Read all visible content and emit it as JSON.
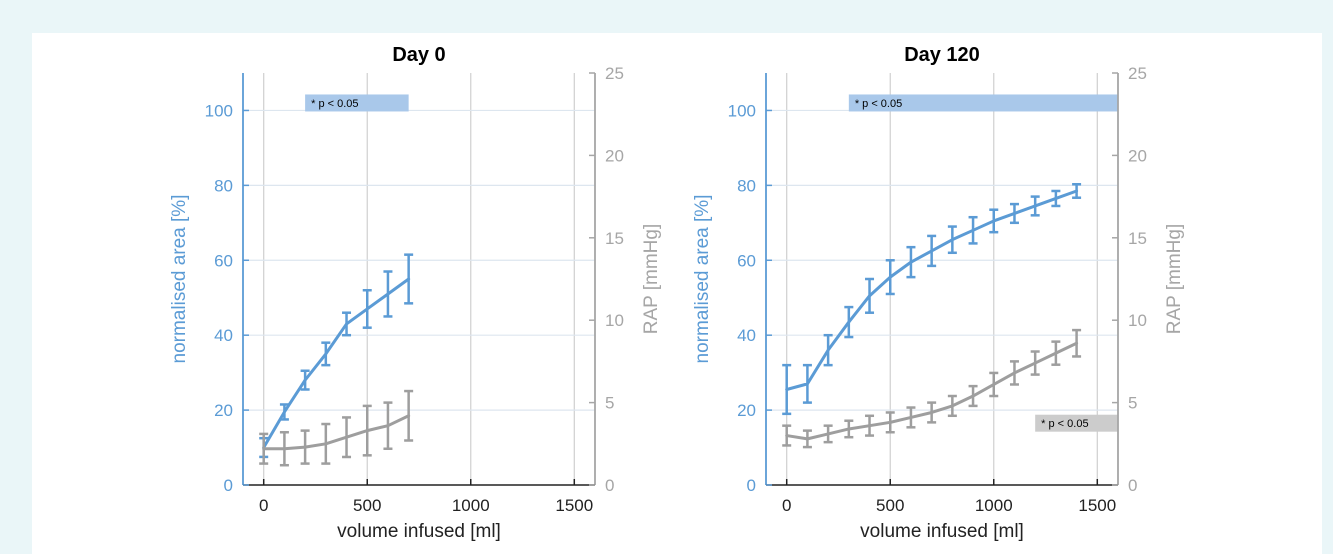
{
  "colors": {
    "area": "#5b9bd5",
    "rap": "#9e9e9e",
    "sig_area": "#a9c8ea",
    "sig_rap": "#cccccc",
    "grid": "#dde6ef"
  },
  "chart_data": [
    {
      "type": "line",
      "title": "Day 0",
      "xlabel": "volume infused [ml]",
      "ylabel_left": "normalised area [%]",
      "ylabel_right": "RAP [mmHg]",
      "xlim": [
        -100,
        1600
      ],
      "ylim_left": [
        0,
        110
      ],
      "ylim_right": [
        0,
        25
      ],
      "xticks": [
        0,
        500,
        1000,
        1500
      ],
      "yticks_left": [
        0,
        20,
        40,
        60,
        80,
        100
      ],
      "yticks_right": [
        0,
        5,
        10,
        15,
        20,
        25
      ],
      "grid": true,
      "series": [
        {
          "axis": "left",
          "color": "area",
          "x": [
            0,
            100,
            200,
            300,
            400,
            500,
            600,
            700
          ],
          "y": [
            10,
            19.5,
            28,
            35,
            43,
            47,
            51,
            55
          ],
          "err": [
            2.5,
            2,
            2.5,
            3,
            3,
            5,
            6,
            6.5
          ]
        },
        {
          "axis": "right",
          "color": "rap",
          "x": [
            0,
            100,
            200,
            300,
            400,
            500,
            600,
            700
          ],
          "y": [
            2.2,
            2.2,
            2.3,
            2.5,
            2.9,
            3.3,
            3.6,
            4.2
          ],
          "err": [
            0.9,
            1,
            1,
            1.2,
            1.2,
            1.5,
            1.4,
            1.5
          ]
        }
      ],
      "annotations": [
        {
          "axis": "left",
          "color": "sig_area",
          "text": "* p < 0.05",
          "x_start": 200,
          "x_end": 700,
          "y": 102
        }
      ]
    },
    {
      "type": "line",
      "title": "Day 120",
      "xlabel": "volume infused [ml]",
      "ylabel_left": "normalised area [%]",
      "ylabel_right": "RAP [mmHg]",
      "xlim": [
        -100,
        1600
      ],
      "ylim_left": [
        0,
        110
      ],
      "ylim_right": [
        0,
        25
      ],
      "xticks": [
        0,
        500,
        1000,
        1500
      ],
      "yticks_left": [
        0,
        20,
        40,
        60,
        80,
        100
      ],
      "yticks_right": [
        0,
        5,
        10,
        15,
        20,
        25
      ],
      "grid": true,
      "series": [
        {
          "axis": "left",
          "color": "area",
          "x": [
            0,
            100,
            200,
            300,
            400,
            500,
            600,
            700,
            800,
            900,
            1000,
            1100,
            1200,
            1300,
            1400
          ],
          "y": [
            25.5,
            27,
            36,
            43.5,
            50.5,
            55.5,
            59.5,
            62.5,
            65.5,
            68,
            70.5,
            72.5,
            74.5,
            76.5,
            78.5
          ],
          "err": [
            6.5,
            5,
            4,
            4,
            4.5,
            4.5,
            4,
            4,
            3.5,
            3.5,
            3,
            2.5,
            2.5,
            2,
            1.8
          ]
        },
        {
          "axis": "right",
          "color": "rap",
          "x": [
            0,
            100,
            200,
            300,
            400,
            500,
            600,
            700,
            800,
            900,
            1000,
            1100,
            1200,
            1300,
            1400
          ],
          "y": [
            3.0,
            2.8,
            3.1,
            3.4,
            3.6,
            3.8,
            4.1,
            4.4,
            4.8,
            5.4,
            6.1,
            6.8,
            7.4,
            8.0,
            8.6
          ],
          "err": [
            0.6,
            0.5,
            0.5,
            0.5,
            0.6,
            0.6,
            0.6,
            0.6,
            0.6,
            0.6,
            0.7,
            0.7,
            0.7,
            0.7,
            0.8
          ]
        }
      ],
      "annotations": [
        {
          "axis": "left",
          "color": "sig_area",
          "text": "* p < 0.05",
          "x_start": 300,
          "x_end": 1600,
          "y": 102
        },
        {
          "axis": "right",
          "color": "sig_rap",
          "text": "* p < 0.05",
          "x_start": 1200,
          "x_end": 1600,
          "y": 3.75
        }
      ]
    }
  ]
}
